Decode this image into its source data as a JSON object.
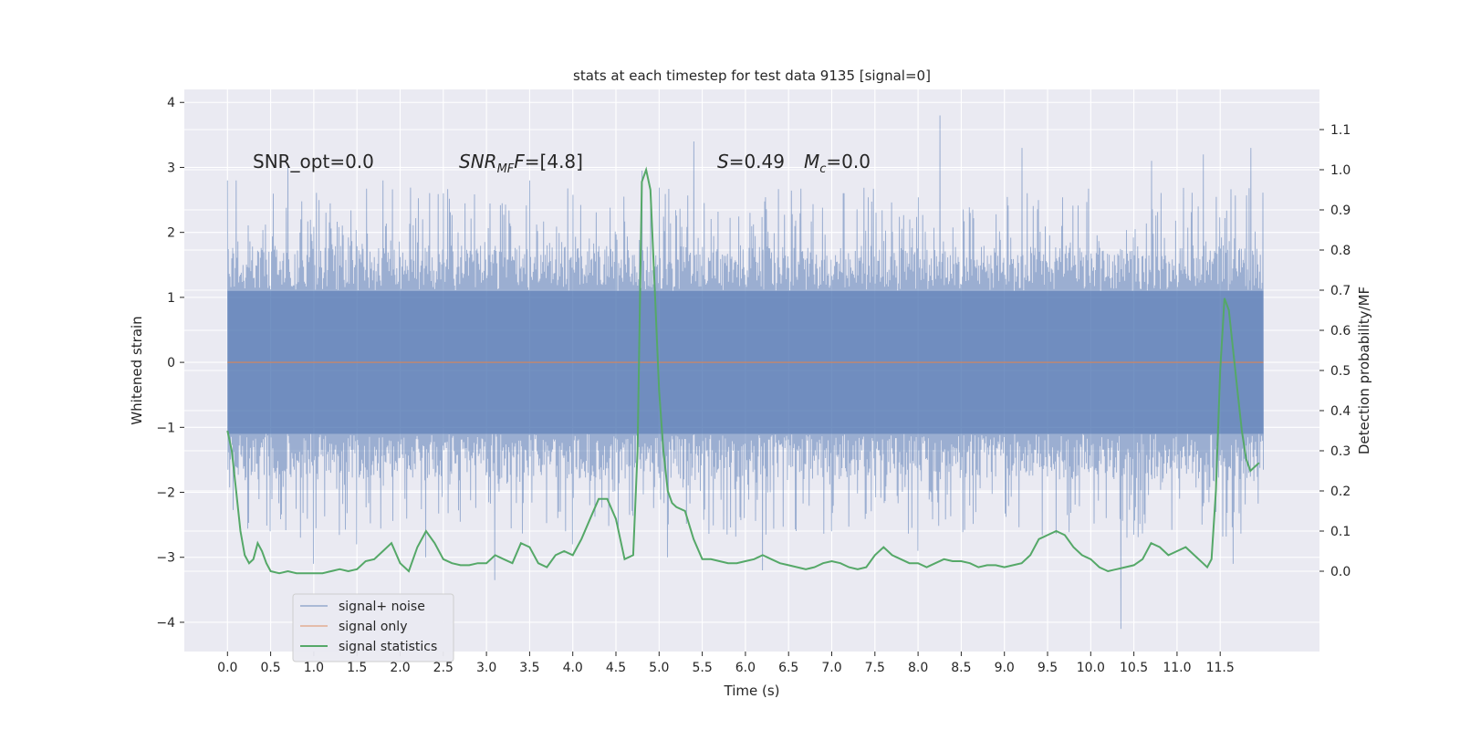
{
  "chart_data": {
    "type": "line",
    "title": "stats at each timestep for test data 9135 [signal=0]",
    "xlabel": "Time (s)",
    "ylabel": "Whitened strain",
    "ylabel_right": "Detection probability/MF",
    "xlim": [
      -0.5,
      12.65
    ],
    "ylim": [
      -4.45,
      4.2
    ],
    "ylim_right": [
      -0.2,
      1.2
    ],
    "x_ticks": [
      "0.0",
      "0.5",
      "1.0",
      "1.5",
      "2.0",
      "2.5",
      "3.0",
      "3.5",
      "4.0",
      "4.5",
      "5.0",
      "5.5",
      "6.0",
      "6.5",
      "7.0",
      "7.5",
      "8.0",
      "8.5",
      "9.0",
      "9.5",
      "10.0",
      "10.5",
      "11.0",
      "11.5"
    ],
    "y_ticks": [
      "4",
      "3",
      "2",
      "1",
      "0",
      "−1",
      "−2",
      "−3",
      "−4"
    ],
    "y_ticks_right": [
      "1.1",
      "1.0",
      "0.9",
      "0.8",
      "0.7",
      "0.6",
      "0.5",
      "0.4",
      "0.3",
      "0.2",
      "0.1",
      "0.0"
    ],
    "grid": true,
    "legend_position": "lower-left",
    "annotations": {
      "snr_opt": "SNR_opt=0.0",
      "snr_mf_a": "SNR",
      "snr_mf_sub": "MF",
      "snr_mf_b": "=[4.8]",
      "s_a": "S",
      "s_b": "=0.49",
      "mc_a": "M",
      "mc_sub": "c",
      "mc_b": "=0.0"
    },
    "series": [
      {
        "name": "signal+ noise",
        "color": "#4c72b0",
        "note_values": "dense noise band, typical envelope ~ -1.8 to 1.8, extremes below",
        "envelope": {
          "x_start": 0.0,
          "x_end": 12.0,
          "typical_low": -1.8,
          "typical_high": 1.8,
          "dense_low": -1.1,
          "dense_high": 1.1
        },
        "peaks": [
          [
            0.0,
            2.8
          ],
          [
            0.1,
            2.8
          ],
          [
            0.7,
            3.0
          ],
          [
            1.8,
            2.8
          ],
          [
            2.5,
            2.6
          ],
          [
            3.5,
            2.8
          ],
          [
            4.8,
            2.95
          ],
          [
            5.4,
            3.4
          ],
          [
            8.25,
            3.8
          ],
          [
            9.2,
            3.3
          ],
          [
            10.7,
            3.1
          ],
          [
            11.3,
            3.2
          ],
          [
            11.85,
            3.3
          ]
        ],
        "troughs": [
          [
            0.5,
            -2.6
          ],
          [
            1.0,
            -3.1
          ],
          [
            1.5,
            -2.8
          ],
          [
            2.3,
            -3.0
          ],
          [
            3.1,
            -3.35
          ],
          [
            4.0,
            -2.8
          ],
          [
            5.1,
            -3.0
          ],
          [
            6.2,
            -3.2
          ],
          [
            8.0,
            -2.9
          ],
          [
            10.35,
            -4.1
          ],
          [
            11.65,
            -3.1
          ]
        ]
      },
      {
        "name": "signal only",
        "color": "#dd8452",
        "x": [
          0.0,
          12.0
        ],
        "y": [
          0.0,
          0.0
        ]
      },
      {
        "name": "signal statistics",
        "color": "#55a868",
        "axis": "right",
        "x": [
          0.0,
          0.05,
          0.1,
          0.15,
          0.2,
          0.25,
          0.3,
          0.35,
          0.4,
          0.45,
          0.5,
          0.6,
          0.7,
          0.8,
          0.9,
          1.0,
          1.1,
          1.2,
          1.3,
          1.4,
          1.5,
          1.6,
          1.7,
          1.8,
          1.9,
          2.0,
          2.1,
          2.2,
          2.3,
          2.4,
          2.5,
          2.6,
          2.7,
          2.8,
          2.9,
          3.0,
          3.1,
          3.2,
          3.3,
          3.4,
          3.5,
          3.6,
          3.7,
          3.8,
          3.9,
          4.0,
          4.1,
          4.2,
          4.3,
          4.4,
          4.5,
          4.6,
          4.7,
          4.75,
          4.8,
          4.85,
          4.9,
          4.95,
          5.0,
          5.05,
          5.1,
          5.15,
          5.2,
          5.3,
          5.4,
          5.5,
          5.6,
          5.7,
          5.8,
          5.9,
          6.0,
          6.1,
          6.2,
          6.3,
          6.4,
          6.5,
          6.6,
          6.7,
          6.8,
          6.9,
          7.0,
          7.1,
          7.2,
          7.3,
          7.4,
          7.5,
          7.6,
          7.7,
          7.8,
          7.9,
          8.0,
          8.1,
          8.2,
          8.3,
          8.4,
          8.5,
          8.6,
          8.7,
          8.8,
          8.9,
          9.0,
          9.1,
          9.2,
          9.3,
          9.4,
          9.5,
          9.6,
          9.7,
          9.8,
          9.9,
          10.0,
          10.1,
          10.2,
          10.3,
          10.4,
          10.5,
          10.6,
          10.7,
          10.8,
          10.9,
          11.0,
          11.1,
          11.2,
          11.3,
          11.35,
          11.4,
          11.45,
          11.5,
          11.55,
          11.6,
          11.65,
          11.7,
          11.75,
          11.8,
          11.85,
          11.9,
          11.95
        ],
        "y": [
          0.35,
          0.3,
          0.2,
          0.1,
          0.04,
          0.02,
          0.03,
          0.07,
          0.05,
          0.02,
          0.0,
          -0.005,
          0.0,
          -0.005,
          -0.005,
          -0.005,
          -0.005,
          0.0,
          0.005,
          0.0,
          0.005,
          0.025,
          0.03,
          0.05,
          0.07,
          0.02,
          0.0,
          0.06,
          0.1,
          0.07,
          0.03,
          0.02,
          0.015,
          0.015,
          0.02,
          0.02,
          0.04,
          0.03,
          0.02,
          0.07,
          0.06,
          0.02,
          0.01,
          0.04,
          0.05,
          0.04,
          0.08,
          0.13,
          0.18,
          0.18,
          0.13,
          0.03,
          0.04,
          0.3,
          0.97,
          1.0,
          0.95,
          0.7,
          0.45,
          0.3,
          0.2,
          0.17,
          0.16,
          0.15,
          0.08,
          0.03,
          0.03,
          0.025,
          0.02,
          0.02,
          0.025,
          0.03,
          0.04,
          0.03,
          0.02,
          0.015,
          0.01,
          0.005,
          0.01,
          0.02,
          0.025,
          0.02,
          0.01,
          0.005,
          0.01,
          0.04,
          0.06,
          0.04,
          0.03,
          0.02,
          0.02,
          0.01,
          0.02,
          0.03,
          0.025,
          0.025,
          0.02,
          0.01,
          0.015,
          0.015,
          0.01,
          0.015,
          0.02,
          0.04,
          0.08,
          0.09,
          0.1,
          0.09,
          0.06,
          0.04,
          0.03,
          0.01,
          0.0,
          0.005,
          0.01,
          0.015,
          0.03,
          0.07,
          0.06,
          0.04,
          0.05,
          0.06,
          0.04,
          0.02,
          0.01,
          0.03,
          0.2,
          0.5,
          0.68,
          0.65,
          0.55,
          0.45,
          0.35,
          0.28,
          0.25,
          0.26,
          0.27
        ]
      }
    ]
  }
}
